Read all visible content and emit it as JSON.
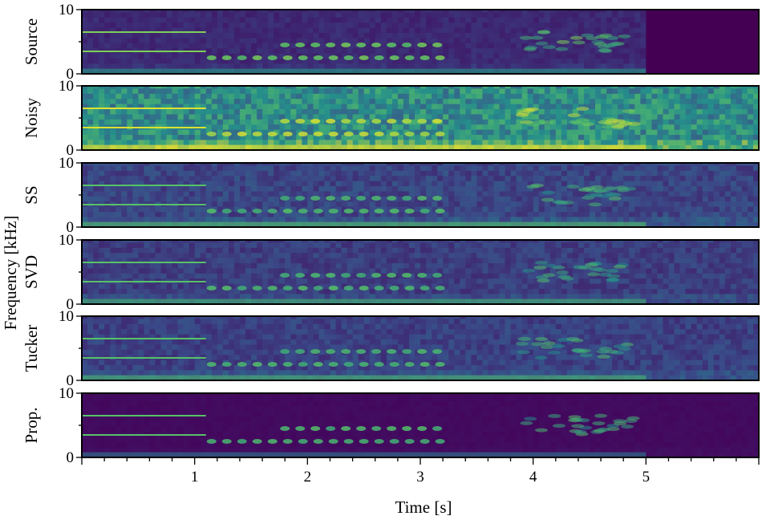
{
  "chart_data": {
    "type": "heatmap",
    "xlabel": "Time [s]",
    "ylabel": "Frequency [kHz]",
    "xlim": [
      0,
      6
    ],
    "x_ticks": [
      "1",
      "2",
      "3",
      "4",
      "5"
    ],
    "ylim": [
      0,
      10
    ],
    "y_ticks": [
      "0",
      "10"
    ],
    "colormap": "viridis",
    "colors": {
      "low": "#440154",
      "mid": "#21918c",
      "high": "#fde725"
    },
    "panels": [
      {
        "name": "Source",
        "signal_end_s": 5.0,
        "background": "#3a2a7a",
        "noise_level": 0.18
      },
      {
        "name": "Noisy",
        "signal_end_s": 5.0,
        "background": "#2a8a8a",
        "noise_level": 0.75
      },
      {
        "name": "SS",
        "signal_end_s": 5.0,
        "background": "#3d3e86",
        "noise_level": 0.35
      },
      {
        "name": "SVD",
        "signal_end_s": 5.0,
        "background": "#3d3a82",
        "noise_level": 0.3
      },
      {
        "name": "Tucker",
        "signal_end_s": 5.0,
        "background": "#3b3d86",
        "noise_level": 0.32
      },
      {
        "name": "Prop.",
        "signal_end_s": 5.0,
        "background": "#440a64",
        "noise_level": 0.05
      }
    ],
    "features": [
      {
        "kind": "harmonic-line",
        "t0": 0.0,
        "t1": 1.1,
        "freq_khz": 3.5
      },
      {
        "kind": "harmonic-line",
        "t0": 0.0,
        "t1": 1.1,
        "freq_khz": 6.5
      },
      {
        "kind": "chirp-train",
        "t0": 1.15,
        "t1": 3.2,
        "freq_khz": 2.5
      },
      {
        "kind": "chirp-train",
        "t0": 1.8,
        "t1": 3.2,
        "freq_khz": 4.5
      },
      {
        "kind": "broadband-burst",
        "t0": 3.9,
        "t1": 4.9,
        "freq_khz": 5.0
      }
    ]
  }
}
